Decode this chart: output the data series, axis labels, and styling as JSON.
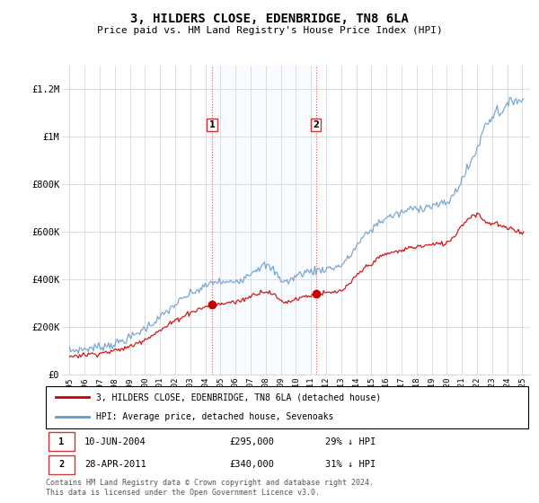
{
  "title": "3, HILDERS CLOSE, EDENBRIDGE, TN8 6LA",
  "subtitle": "Price paid vs. HM Land Registry's House Price Index (HPI)",
  "legend_line1": "3, HILDERS CLOSE, EDENBRIDGE, TN8 6LA (detached house)",
  "legend_line2": "HPI: Average price, detached house, Sevenoaks",
  "footnote": "Contains HM Land Registry data © Crown copyright and database right 2024.\nThis data is licensed under the Open Government Licence v3.0.",
  "sale1_label": "1",
  "sale1_date": "10-JUN-2004",
  "sale1_price": "£295,000",
  "sale1_hpi": "29% ↓ HPI",
  "sale2_label": "2",
  "sale2_date": "28-APR-2011",
  "sale2_price": "£340,000",
  "sale2_hpi": "31% ↓ HPI",
  "price_color": "#cc0000",
  "hpi_color": "#6699cc",
  "shade_color": "#ddeeff",
  "marker1_x": 2004.44,
  "marker1_y": 295000,
  "marker2_x": 2011.32,
  "marker2_y": 340000,
  "ylim": [
    0,
    1300000
  ],
  "xlim": [
    1994.5,
    2025.5
  ],
  "yticks": [
    0,
    200000,
    400000,
    600000,
    800000,
    1000000,
    1200000
  ],
  "ytick_labels": [
    "£0",
    "£200K",
    "£400K",
    "£600K",
    "£800K",
    "£1M",
    "£1.2M"
  ],
  "xticks": [
    1995,
    1996,
    1997,
    1998,
    1999,
    2000,
    2001,
    2002,
    2003,
    2004,
    2005,
    2006,
    2007,
    2008,
    2009,
    2010,
    2011,
    2012,
    2013,
    2014,
    2015,
    2016,
    2017,
    2018,
    2019,
    2020,
    2021,
    2022,
    2023,
    2024,
    2025
  ]
}
